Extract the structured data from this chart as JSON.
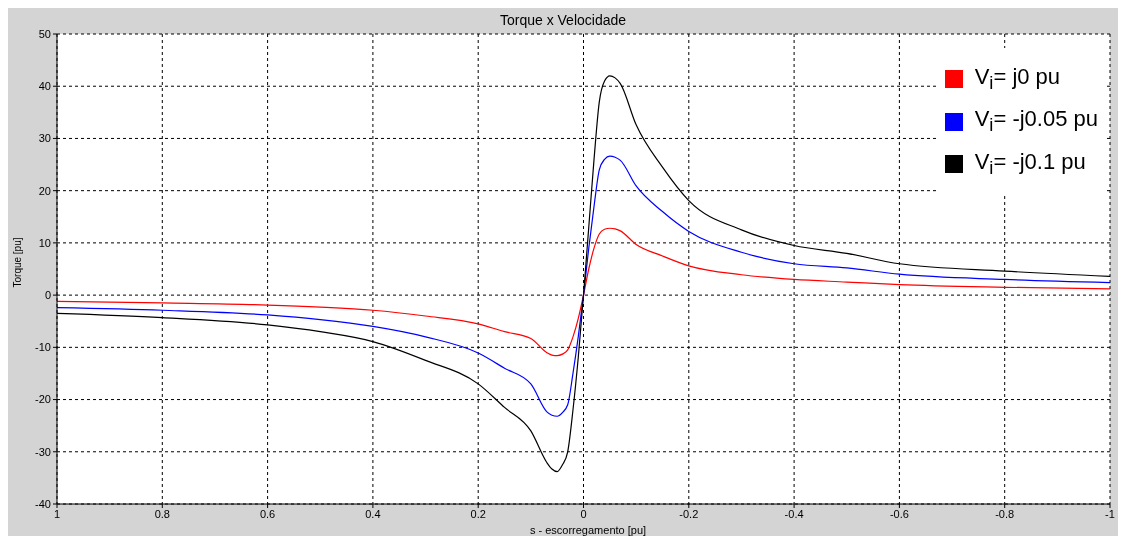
{
  "chart_data": {
    "type": "line",
    "title": "Torque x Velocidade",
    "xlabel": "s - escorregamento [pu]",
    "ylabel": "Torque [pu]",
    "x": [
      1,
      0.8,
      0.6,
      0.5,
      0.4,
      0.3,
      0.2,
      0.15,
      0.1,
      0.07,
      0.06,
      0.05,
      0.04,
      0.03,
      0.02,
      0.01,
      0,
      -0.01,
      -0.02,
      -0.03,
      -0.04,
      -0.05,
      -0.06,
      -0.07,
      -0.1,
      -0.15,
      -0.2,
      -0.3,
      -0.4,
      -0.5,
      -0.6,
      -0.8,
      -1
    ],
    "series": [
      {
        "name": "V$_{i}$= j0 pu",
        "color": "#ff0000",
        "values": [
          -1.2,
          -1.5,
          -1.9,
          -2.3,
          -2.9,
          -4,
          -5.5,
          -7,
          -8.3,
          -11,
          -11.5,
          -11.6,
          -11.3,
          -10.5,
          -8,
          -4.5,
          0,
          5,
          9,
          11.7,
          12.6,
          12.8,
          12.7,
          12.3,
          9.7,
          7.5,
          5.6,
          3.9,
          3,
          2.5,
          2,
          1.5,
          1.2
        ]
      },
      {
        "name": "V$_{i}$= -j0.05 pu",
        "color": "#0000ff",
        "values": [
          -2.4,
          -2.9,
          -3.8,
          -4.7,
          -6,
          -8,
          -11.1,
          -14,
          -17,
          -22.3,
          -23,
          -23.2,
          -22.5,
          -21,
          -15,
          -8,
          0,
          9,
          17,
          24,
          26,
          26.6,
          26.4,
          25.8,
          20.9,
          16,
          12.2,
          8.2,
          6,
          5.2,
          4,
          3,
          2.4
        ]
      },
      {
        "name": "V$_{i}$= -j0.1 pu",
        "color": "#000000",
        "values": [
          -3.5,
          -4.3,
          -5.7,
          -7,
          -8.9,
          -12.5,
          -17,
          -21.5,
          -26,
          -32,
          -33.3,
          -33.8,
          -32.5,
          -30,
          -22,
          -12,
          0,
          13,
          26,
          37,
          41,
          42,
          41.6,
          40.5,
          32.6,
          24.5,
          18.1,
          12.5,
          9.5,
          8,
          6,
          4.6,
          3.6
        ]
      }
    ],
    "xlim": [
      1,
      -1
    ],
    "xticks": [
      1,
      0.8,
      0.6,
      0.4,
      0.2,
      0,
      -0.2,
      -0.4,
      -0.6,
      -0.8,
      -1
    ],
    "ylim": [
      -40,
      50
    ],
    "yticks": [
      -40,
      -30,
      -20,
      -10,
      0,
      10,
      20,
      30,
      40,
      50
    ],
    "grid": true,
    "legend": "top right",
    "marker": "none",
    "line_style": "solid"
  }
}
